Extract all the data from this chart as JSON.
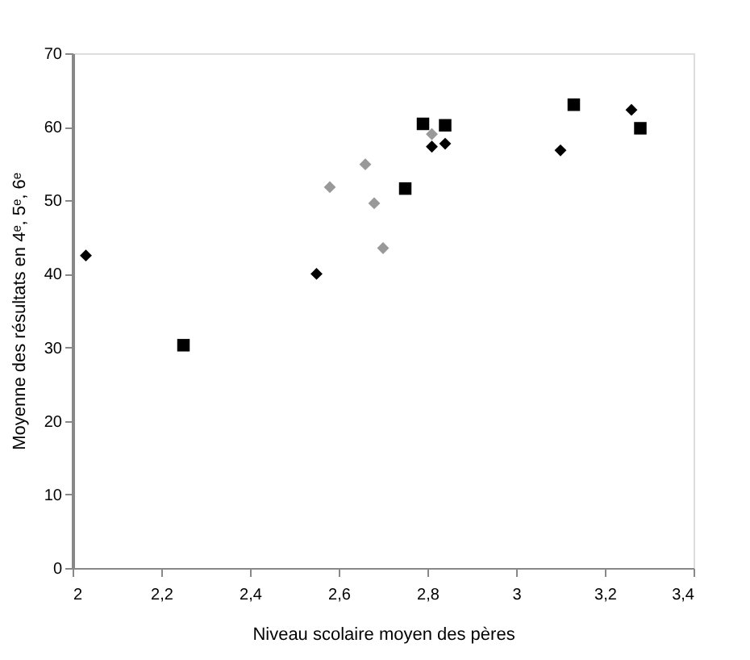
{
  "chart_data": {
    "type": "scatter",
    "xlabel": "Niveau scolaire moyen des pères",
    "ylabel": "Moyenne des résultats en 4ᵉ, 5ᵉ, 6ᵉ",
    "xlim": [
      2,
      3.4
    ],
    "xticks": [
      {
        "value": 2,
        "label": "2"
      },
      {
        "value": 2.2,
        "label": "2,2"
      },
      {
        "value": 2.4,
        "label": "2,4"
      },
      {
        "value": 2.6,
        "label": "2,6"
      },
      {
        "value": 2.8,
        "label": "2,8"
      },
      {
        "value": 3,
        "label": "3"
      },
      {
        "value": 3.2,
        "label": "3,2"
      },
      {
        "value": 3.4,
        "label": "3,4"
      }
    ],
    "ylim": [
      0,
      70
    ],
    "yticks": [
      0,
      10,
      20,
      30,
      40,
      50,
      60,
      70
    ],
    "grid": false,
    "series": [
      {
        "color": "#000000",
        "marker": "diamond",
        "x": [
          2.03,
          2.55,
          2.81,
          2.84,
          3.1,
          3.26
        ],
        "values": [
          42.5,
          40,
          57.3,
          57.7,
          56.8,
          62.3
        ]
      },
      {
        "color": "#000000",
        "marker": "square",
        "x": [
          2.25,
          2.75,
          2.79,
          2.84,
          3.13,
          3.28
        ],
        "values": [
          30.3,
          51.6,
          60.4,
          60.2,
          63,
          59.8
        ]
      },
      {
        "color": "#999999",
        "marker": "diamond",
        "x": [
          2.58,
          2.66,
          2.68,
          2.7,
          2.81
        ],
        "values": [
          51.8,
          54.9,
          49.6,
          43.5,
          59
        ]
      }
    ]
  }
}
